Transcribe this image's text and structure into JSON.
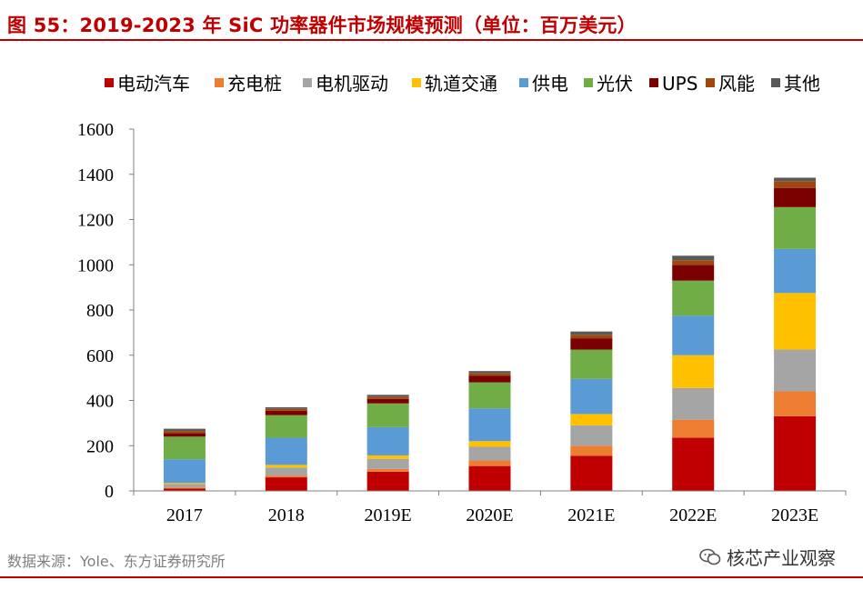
{
  "header": {
    "title": "图 55：2019-2023 年 SiC 功率器件市场规模预测（单位：百万美元）"
  },
  "footer": {
    "source": "数据来源：Yole、东方证券研究所",
    "brand": "核芯产业观察"
  },
  "chart_data": {
    "type": "bar",
    "stacked": true,
    "categories": [
      "2017",
      "2018",
      "2019E",
      "2020E",
      "2021E",
      "2022E",
      "2023E"
    ],
    "ylim": [
      0,
      1600
    ],
    "yticks": [
      0,
      200,
      400,
      600,
      800,
      1000,
      1200,
      1400,
      1600
    ],
    "legend_position": "top",
    "series": [
      {
        "name": "电动汽车",
        "color": "#c00000",
        "values": [
          10,
          60,
          85,
          110,
          155,
          235,
          330
        ]
      },
      {
        "name": "充电桩",
        "color": "#ed7d31",
        "values": [
          5,
          8,
          12,
          25,
          45,
          80,
          110
        ]
      },
      {
        "name": "电机驱动",
        "color": "#a5a5a5",
        "values": [
          15,
          35,
          45,
          60,
          90,
          140,
          185
        ]
      },
      {
        "name": "轨道交通",
        "color": "#ffc000",
        "values": [
          5,
          12,
          15,
          25,
          50,
          145,
          250
        ]
      },
      {
        "name": "供电",
        "color": "#5b9bd5",
        "values": [
          105,
          120,
          125,
          145,
          155,
          175,
          195
        ]
      },
      {
        "name": "光伏",
        "color": "#70ad47",
        "values": [
          100,
          100,
          105,
          115,
          130,
          155,
          185
        ]
      },
      {
        "name": "UPS",
        "color": "#7b0000",
        "values": [
          15,
          20,
          20,
          30,
          50,
          70,
          85
        ]
      },
      {
        "name": "风能",
        "color": "#9e480e",
        "values": [
          10,
          8,
          10,
          10,
          15,
          20,
          30
        ]
      },
      {
        "name": "其他",
        "color": "#595959",
        "values": [
          10,
          7,
          8,
          10,
          15,
          20,
          15
        ]
      }
    ]
  }
}
